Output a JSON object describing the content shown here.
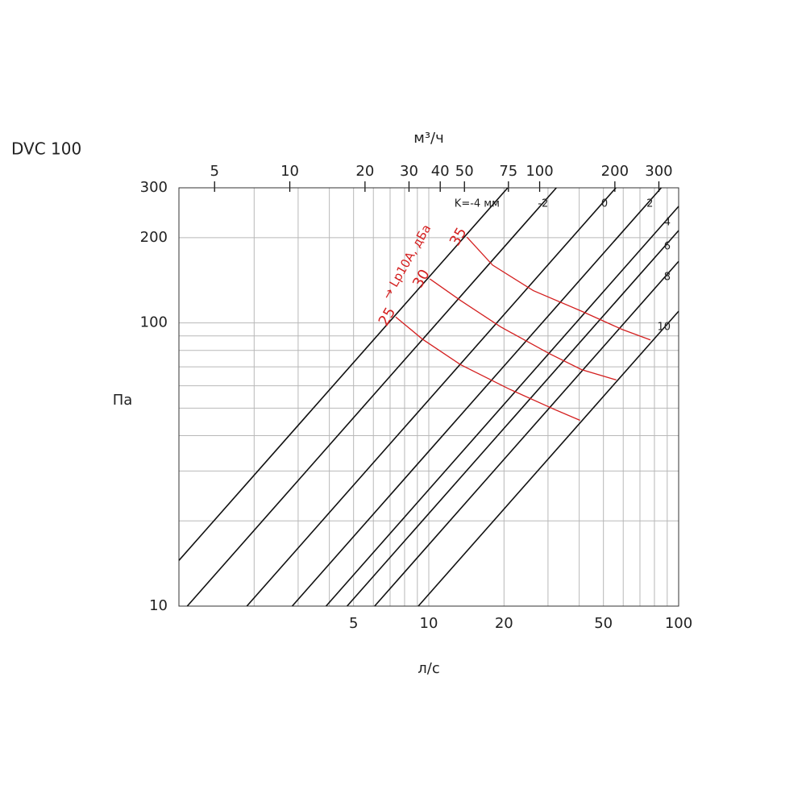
{
  "chart_data": {
    "type": "line",
    "title": "DVC 100",
    "x_label": "л/с",
    "y_label": "Па",
    "x2_label": "м³/ч",
    "log_scale": true,
    "grid": true,
    "xlim": [
      1,
      100
    ],
    "xticks": [
      5,
      10,
      20,
      50,
      100
    ],
    "xminor": [
      2,
      3,
      4,
      6,
      7,
      8,
      9,
      30,
      40,
      60,
      70,
      80,
      90
    ],
    "ylim": [
      10,
      300
    ],
    "yticks": [
      10,
      100,
      200,
      300
    ],
    "yminor": [
      20,
      30,
      40,
      50,
      60,
      70,
      80,
      90
    ],
    "x2lim": [
      3.6,
      360
    ],
    "x2ticks": [
      5,
      10,
      20,
      30,
      40,
      50,
      75,
      100,
      200,
      300
    ],
    "annotation": "→ Lp10A, дБа",
    "series": [
      {
        "name": "K=-4 мм",
        "color": "#111111",
        "kind": "k",
        "x": [
          1,
          20.7
        ],
        "values": [
          14.5,
          300
        ]
      },
      {
        "name": "-2",
        "color": "#111111",
        "kind": "k",
        "x": [
          1.08,
          32.4
        ],
        "values": [
          10,
          300
        ]
      },
      {
        "name": "0",
        "color": "#111111",
        "kind": "k",
        "x": [
          1.87,
          56.1
        ],
        "values": [
          10,
          300
        ]
      },
      {
        "name": "2",
        "color": "#111111",
        "kind": "k",
        "x": [
          2.84,
          85.2
        ],
        "values": [
          10,
          300
        ]
      },
      {
        "name": "4",
        "color": "#111111",
        "kind": "k",
        "x": [
          3.88,
          100
        ],
        "values": [
          10,
          258
        ]
      },
      {
        "name": "6",
        "color": "#111111",
        "kind": "k",
        "x": [
          4.71,
          100
        ],
        "values": [
          10,
          212
        ]
      },
      {
        "name": "8",
        "color": "#111111",
        "kind": "k",
        "x": [
          6.07,
          100
        ],
        "values": [
          10,
          165
        ]
      },
      {
        "name": "10",
        "color": "#111111",
        "kind": "k",
        "x": [
          9.08,
          100
        ],
        "values": [
          10,
          110
        ]
      },
      {
        "name": "35",
        "color": "#d42020",
        "kind": "noise",
        "x": [
          14.2,
          18.0,
          26.2,
          40.9,
          59.3,
          77.1
        ],
        "values": [
          201,
          160,
          130,
          110,
          94.9,
          87.1
        ]
      },
      {
        "name": "30",
        "color": "#d42020",
        "kind": "noise",
        "x": [
          10.1,
          13.4,
          19.4,
          30.3,
          40.9,
          56.3
        ],
        "values": [
          143,
          120,
          96.8,
          78.0,
          68.4,
          62.9
        ]
      },
      {
        "name": "25",
        "color": "#d42020",
        "kind": "noise",
        "x": [
          7.37,
          9.42,
          13.4,
          20.9,
          31.5,
          40.3
        ],
        "values": [
          105,
          87.7,
          71.2,
          58.5,
          49.7,
          45.3
        ]
      }
    ]
  }
}
